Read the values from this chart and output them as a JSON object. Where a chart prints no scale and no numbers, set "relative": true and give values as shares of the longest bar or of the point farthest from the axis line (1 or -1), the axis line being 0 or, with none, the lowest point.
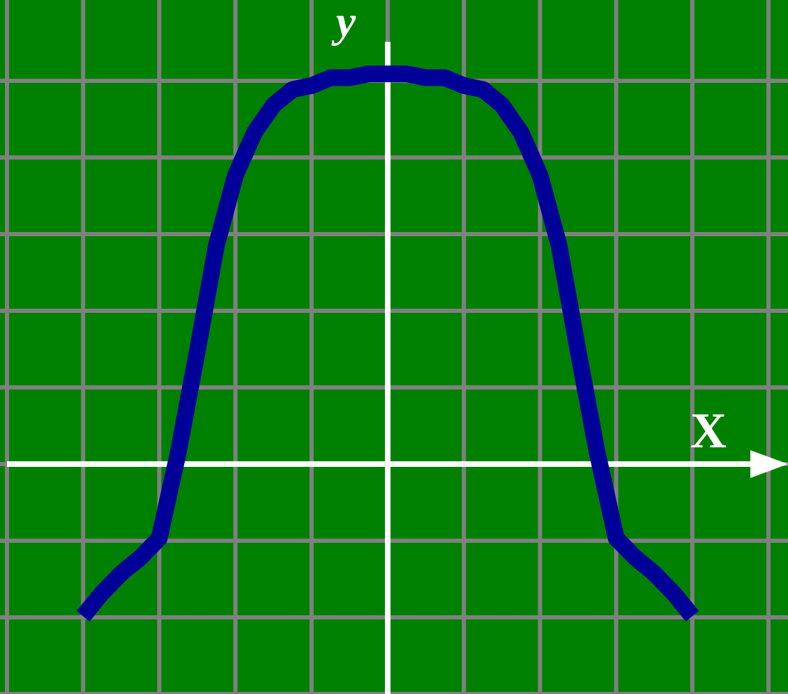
{
  "chart_data": {
    "type": "line",
    "xlabel": "X",
    "ylabel": "y",
    "relative": true,
    "grid": true,
    "categories": [
      null,
      null,
      null,
      null,
      null,
      null,
      null,
      null,
      null,
      null,
      null,
      null,
      null,
      null,
      null,
      null,
      null,
      null,
      null,
      null,
      null,
      null,
      null,
      null,
      null,
      null,
      null,
      null,
      null,
      null,
      null,
      null,
      null
    ],
    "series": [
      {
        "color": "#000099",
        "values": [
          -0.39,
          -0.33,
          -0.28,
          -0.24,
          -0.19,
          0.03,
          0.29,
          0.56,
          0.74,
          0.85,
          0.92,
          0.96,
          0.97,
          0.99,
          0.99,
          1.0,
          1.0,
          1.0,
          0.99,
          0.99,
          0.97,
          0.96,
          0.92,
          0.85,
          0.74,
          0.56,
          0.29,
          0.03,
          -0.19,
          -0.24,
          -0.28,
          -0.33,
          -0.39
        ]
      }
    ]
  }
}
